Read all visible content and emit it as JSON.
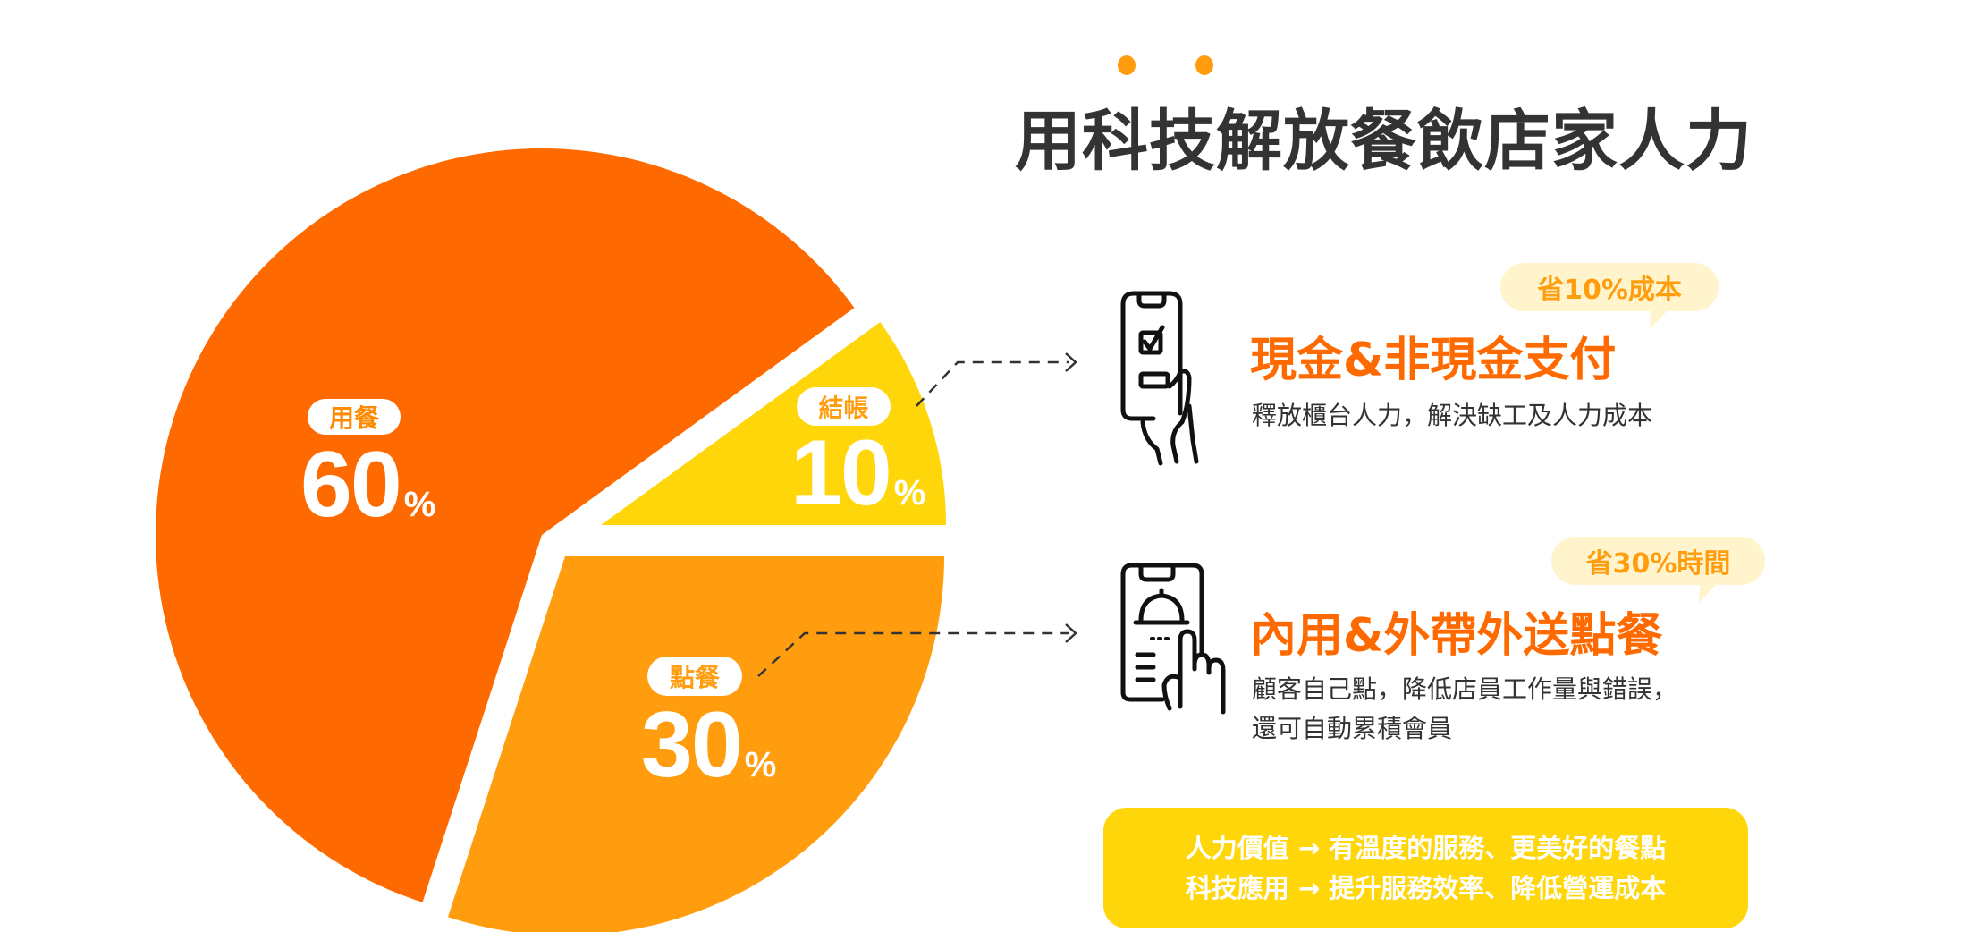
{
  "title": "用科技解放餐飲店家人力",
  "colors": {
    "title_dots": "#FF9D0E",
    "heading": "#FF6A00",
    "badge_bg": "#FFF4CC",
    "badge_text": "#FF9D0E",
    "summary_bg": "#FFD60A"
  },
  "chart_data": {
    "type": "pie",
    "unit": "%",
    "slices": [
      {
        "label": "結帳",
        "value": 10,
        "color": "#FFD60A"
      },
      {
        "label": "點餐",
        "value": 30,
        "color": "#FF9D0E"
      },
      {
        "label": "用餐",
        "value": 60,
        "color": "#FF6A00"
      }
    ]
  },
  "features": [
    {
      "icon": "phone-checkbox-hand-icon",
      "badge": "省10%成本",
      "heading": "現金&非現金支付",
      "desc_lines": [
        "釋放櫃台人力，解決缺工及人力成本"
      ]
    },
    {
      "icon": "phone-cloche-tap-icon",
      "badge": "省30%時間",
      "heading": "內用&外帶外送點餐",
      "desc_lines": [
        "顧客自己點，降低店員工作量與錯誤，",
        "還可自動累積會員"
      ]
    }
  ],
  "summary": {
    "lines": [
      "人力價值 → 有溫度的服務、更美好的餐點",
      "科技應用 → 提升服務效率、降低營運成本"
    ]
  }
}
